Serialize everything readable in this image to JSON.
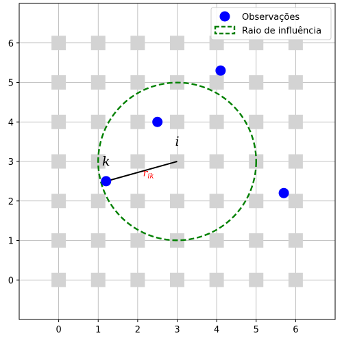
{
  "chart_data": {
    "type": "scatter",
    "xlim": [
      -1,
      7
    ],
    "ylim": [
      -1,
      7
    ],
    "x_ticks": [
      0,
      1,
      2,
      3,
      4,
      5,
      6
    ],
    "y_ticks": [
      0,
      1,
      2,
      3,
      4,
      5,
      6
    ],
    "grid": true,
    "legend_position": "top-right",
    "grid_points": {
      "color": "#d3d3d3",
      "x": [
        0,
        1,
        2,
        3,
        4,
        5,
        6
      ],
      "y": [
        0,
        1,
        2,
        3,
        4,
        5,
        6
      ]
    },
    "series": [
      {
        "name": "Observações",
        "color": "#0000ff",
        "points": [
          [
            1.2,
            2.5
          ],
          [
            2.5,
            4.0
          ],
          [
            4.1,
            5.3
          ],
          [
            5.7,
            2.2
          ]
        ]
      }
    ],
    "circle": {
      "name": "Raio de influência",
      "color": "#008000",
      "center": [
        3,
        3
      ],
      "radius": 2
    },
    "arrow": {
      "from": [
        3,
        3
      ],
      "to": [
        1.2,
        2.5
      ],
      "label": "r_ik",
      "label_color": "#ff0000"
    },
    "annotations": [
      {
        "text": "i",
        "x": 3.0,
        "y": 3.4
      },
      {
        "text": "k",
        "x": 1.2,
        "y": 2.9
      }
    ]
  }
}
